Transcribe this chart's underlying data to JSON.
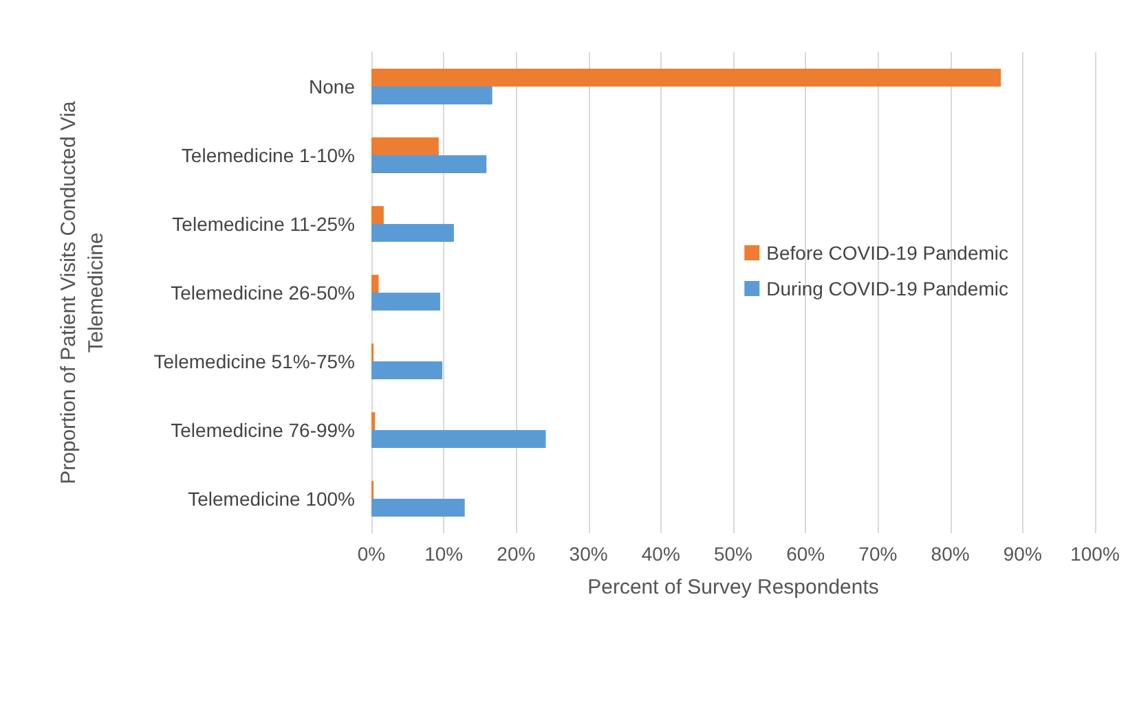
{
  "chart_data": {
    "type": "bar",
    "orientation": "horizontal",
    "xlabel": "Percent of Survey Respondents",
    "ylabel": "Proportion of Patient Visits Conducted Via\nTelemedicine",
    "categories": [
      "None",
      "Telemedicine 1-10%",
      "Telemedicine 11-25%",
      "Telemedicine 26-50%",
      "Telemedicine 51%-75%",
      "Telemedicine 76-99%",
      "Telemedicine 100%"
    ],
    "series": [
      {
        "name": "Before COVID-19 Pandemic",
        "color": "#ed7d31",
        "values": [
          87,
          9.3,
          1.7,
          1,
          0.3,
          0.5,
          0.3
        ]
      },
      {
        "name": "During COVID-19 Pandemic",
        "color": "#5b9bd5",
        "values": [
          16.7,
          15.9,
          11.4,
          9.5,
          9.8,
          24.1,
          12.9
        ]
      }
    ],
    "xlim": [
      0,
      100
    ],
    "xticks": [
      {
        "value": 0,
        "label": "0%"
      },
      {
        "value": 10,
        "label": "10%"
      },
      {
        "value": 20,
        "label": "20%"
      },
      {
        "value": 30,
        "label": "30%"
      },
      {
        "value": 40,
        "label": "40%"
      },
      {
        "value": 50,
        "label": "50%"
      },
      {
        "value": 60,
        "label": "60%"
      },
      {
        "value": 70,
        "label": "70%"
      },
      {
        "value": 80,
        "label": "80%"
      },
      {
        "value": 90,
        "label": "90%"
      },
      {
        "value": 100,
        "label": "100%"
      }
    ],
    "grid": "x",
    "legend": "right"
  }
}
